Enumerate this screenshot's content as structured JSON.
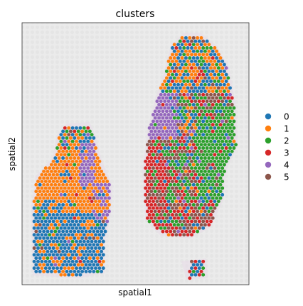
{
  "chart_data": {
    "type": "scatter",
    "title": "clusters",
    "xlabel": "spatial1",
    "ylabel": "spatial2",
    "legend_position": "right",
    "grid": false,
    "series": [
      {
        "name": "0",
        "color": "#1f77b4"
      },
      {
        "name": "1",
        "color": "#ff7f0e"
      },
      {
        "name": "2",
        "color": "#2ca02c"
      },
      {
        "name": "3",
        "color": "#d62728"
      },
      {
        "name": "4",
        "color": "#9467bd"
      },
      {
        "name": "5",
        "color": "#8c564b"
      }
    ]
  }
}
